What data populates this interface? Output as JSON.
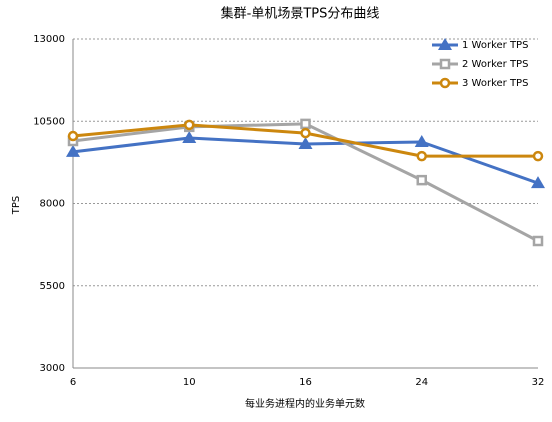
{
  "chart_data": {
    "type": "line",
    "title": "集群-单机场景TPS分布曲线",
    "x_label": "每业务进程内的业务单元数",
    "y_label": "TPS",
    "categories": [
      "6",
      "10",
      "16",
      "24",
      "32"
    ],
    "series": [
      {
        "name": "1 Worker TPS",
        "color": "#4472c4",
        "marker": "triangle",
        "values": [
          9570,
          9990,
          9810,
          9870,
          8620
        ]
      },
      {
        "name": "2 Worker TPS",
        "color": "#a5a5a5",
        "marker": "square",
        "values": [
          9900,
          10330,
          10420,
          8710,
          6860
        ]
      },
      {
        "name": "3 Worker TPS",
        "color": "#cc870e",
        "marker": "circle",
        "values": [
          10050,
          10390,
          10140,
          9440,
          9440
        ]
      }
    ],
    "ylim": [
      3000,
      13000
    ],
    "yticks": [
      3000,
      5500,
      8000,
      10500,
      13000
    ],
    "grid": true,
    "legend": "top-right"
  }
}
